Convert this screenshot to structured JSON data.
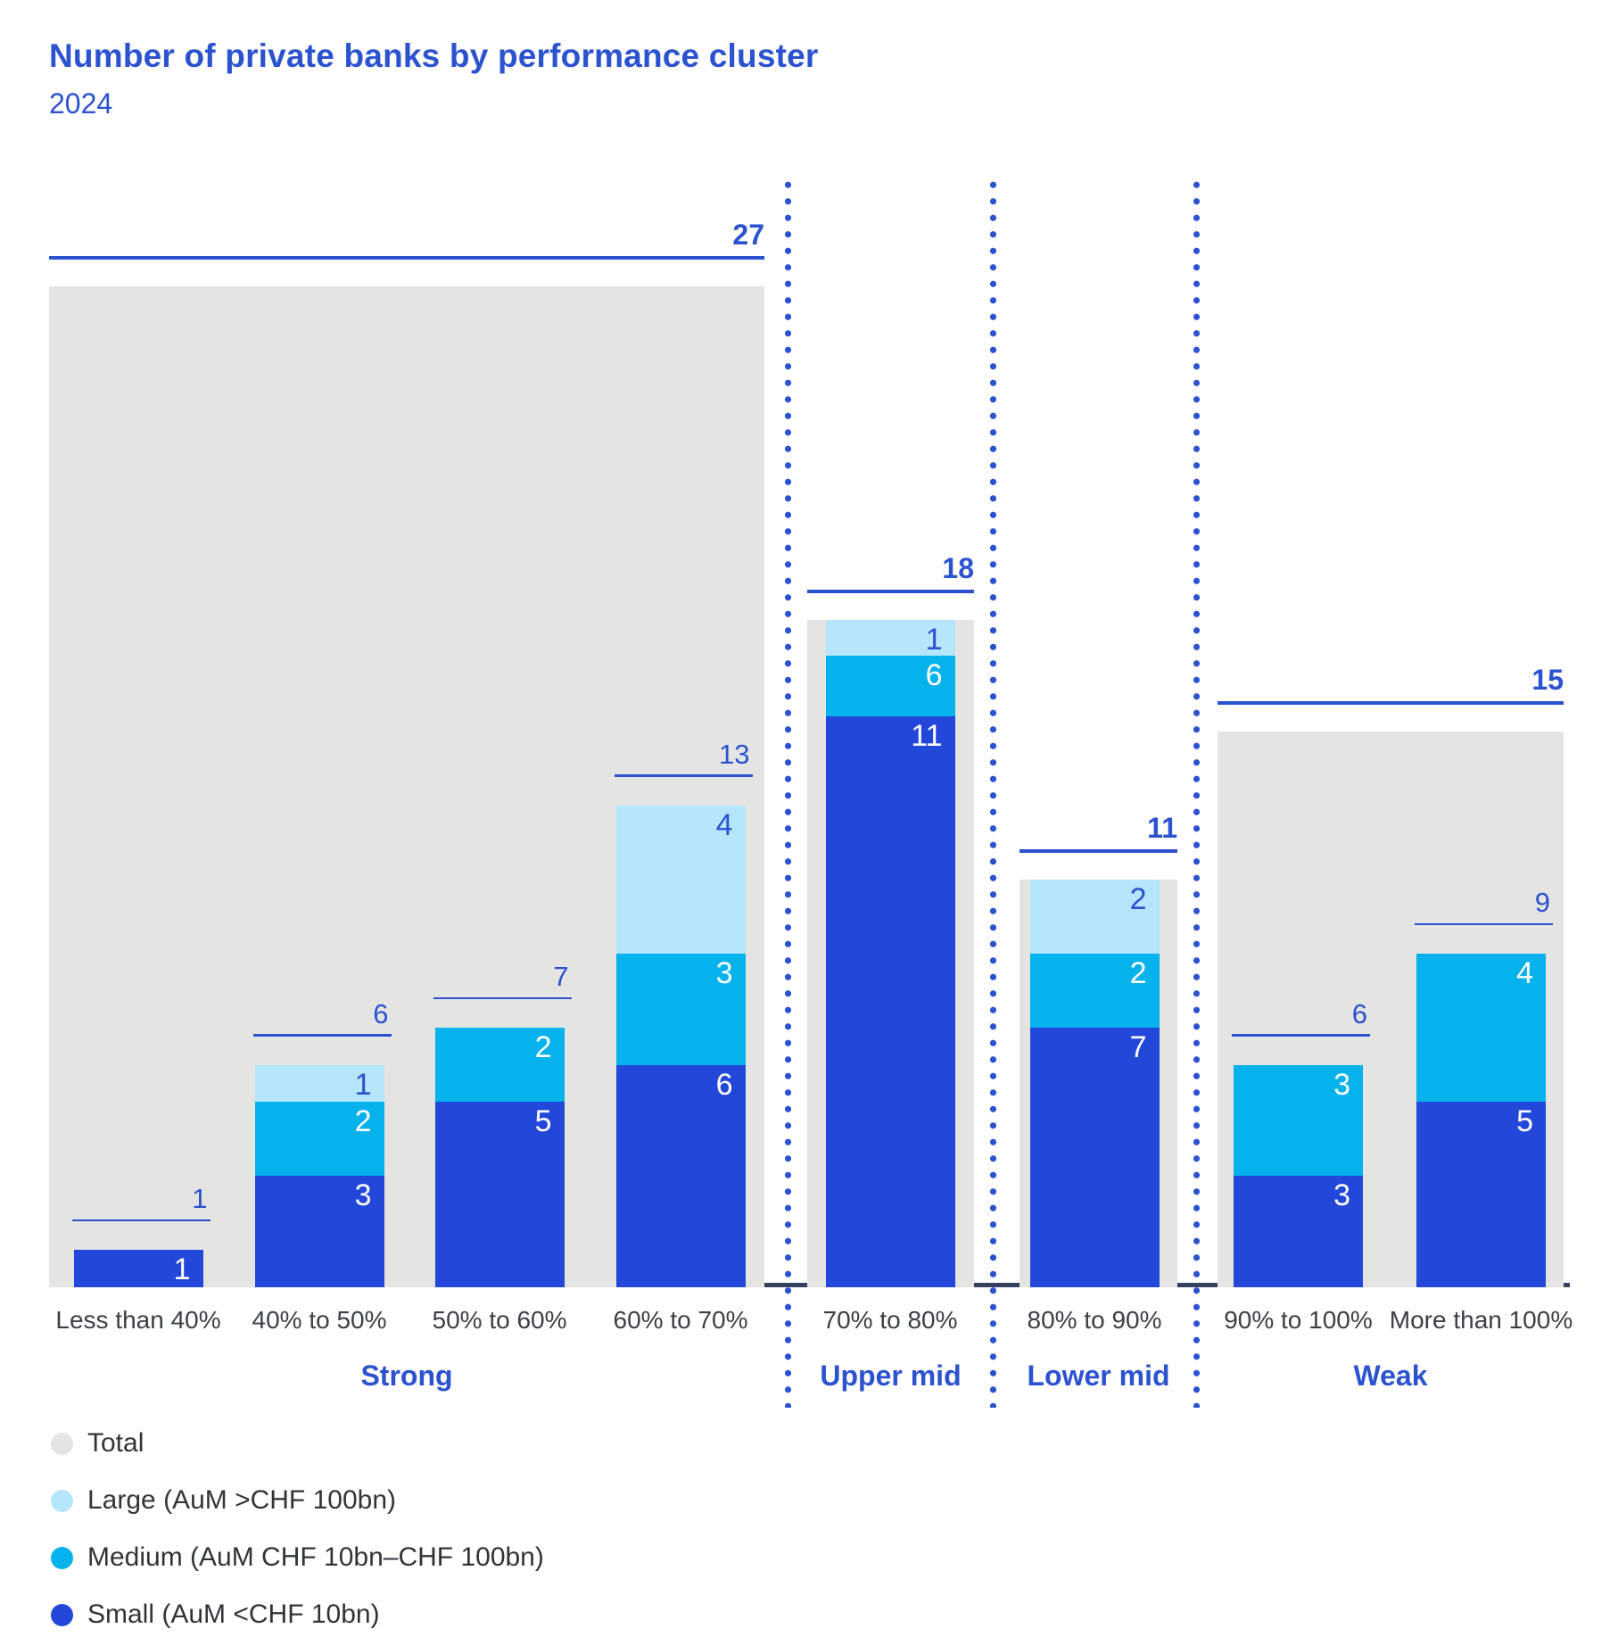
{
  "title": "Number of private banks by performance cluster",
  "subtitle": "2024",
  "colors": {
    "small": "#2348d9",
    "medium": "#05b2ec",
    "large": "#b5e6fb",
    "total": "#e4e4e3",
    "accent": "#2b52cf",
    "axis": "#36415f",
    "category_label": "#3a4046",
    "legend_text": "#303439",
    "segment_label_light": "#ffffff"
  },
  "legend": [
    {
      "label": "Total",
      "color_key": "total"
    },
    {
      "label": "Large (AuM >CHF 100bn)",
      "color_key": "large"
    },
    {
      "label": "Medium (AuM CHF 10bn–CHF 100bn)",
      "color_key": "medium"
    },
    {
      "label": "Small (AuM <CHF 10bn)",
      "color_key": "small"
    }
  ],
  "chart_data": {
    "type": "bar",
    "stacked": true,
    "title": "Number of private banks by performance cluster",
    "subtitle": "2024",
    "ylabel": "Number of private banks",
    "ylim": [
      0,
      27
    ],
    "grid": false,
    "legend_position": "bottom-left",
    "categories": [
      "Less than 40%",
      "40% to 50%",
      "50% to 60%",
      "60% to 70%",
      "70% to 80%",
      "80% to 90%",
      "90% to 100%",
      "More than 100%"
    ],
    "series": [
      {
        "name": "Small (AuM <CHF 10bn)",
        "key": "small",
        "values": [
          1,
          3,
          5,
          6,
          11,
          7,
          3,
          5
        ]
      },
      {
        "name": "Medium (AuM CHF 10bn–CHF 100bn)",
        "key": "medium",
        "values": [
          0,
          2,
          2,
          3,
          6,
          2,
          3,
          4
        ]
      },
      {
        "name": "Large (AuM >CHF 100bn)",
        "key": "large",
        "values": [
          0,
          1,
          0,
          4,
          1,
          2,
          0,
          0
        ]
      }
    ],
    "bar_totals": [
      1,
      6,
      7,
      13,
      18,
      11,
      6,
      9
    ],
    "clusters": [
      {
        "label": "Strong",
        "category_indexes": [
          0,
          1,
          2,
          3
        ],
        "total": 27
      },
      {
        "label": "Upper mid",
        "category_indexes": [
          4
        ],
        "total": 18
      },
      {
        "label": "Lower mid",
        "category_indexes": [
          5
        ],
        "total": 11
      },
      {
        "label": "Weak",
        "category_indexes": [
          6,
          7
        ],
        "total": 15
      }
    ],
    "drawn_segment_units_override": {
      "4": {
        "small": 15.4,
        "medium": 1.65,
        "large": 0.95
      }
    },
    "source_drawing_note": "In the source image the 70% to 80% bar segments are not drawn proportionally to their labeled values; override reproduces the drawn heights."
  }
}
